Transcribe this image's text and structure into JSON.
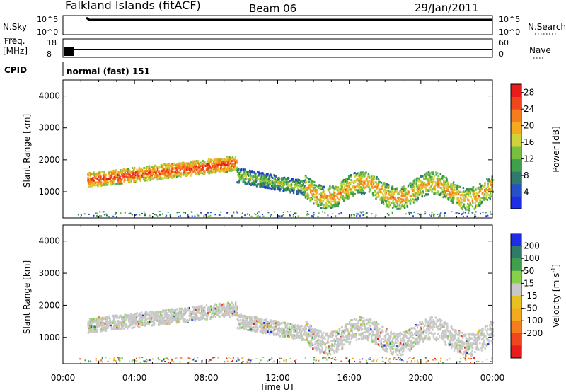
{
  "header": {
    "station": "Falkland Islands (fitACF)",
    "beam": "Beam 06",
    "date": "29/Jan/2011"
  },
  "strip_panels": {
    "nsky": {
      "label": "N.Sky",
      "right_label": "N.Search",
      "left_ticks": [
        "10^5",
        "10^0"
      ],
      "right_ticks": [
        "10^5",
        "10^0"
      ]
    },
    "freq": {
      "label_line1": "Freq.",
      "label_line2": "[MHz]",
      "right_label": "Nave",
      "left_ticks": [
        "18",
        "8"
      ],
      "right_ticks": [
        "60",
        "0"
      ]
    },
    "cpid": {
      "label": "CPID",
      "value": "normal (fast) 151"
    }
  },
  "chart_data": [
    {
      "type": "heatmap",
      "name": "power",
      "ylabel": "Slant Range [km]",
      "xlabel": "",
      "x_range_hours": [
        0,
        24
      ],
      "ylim": [
        180,
        4500
      ],
      "y_ticks": [
        1000,
        2000,
        3000,
        4000
      ],
      "colorbar": {
        "label": "Power [dB]",
        "ticks": [
          4,
          8,
          12,
          16,
          20,
          24,
          28
        ],
        "range": [
          0,
          30
        ],
        "colors": [
          "#1e2ee6",
          "#2850c8",
          "#2f7a6a",
          "#3fa04c",
          "#76c040",
          "#cfd23a",
          "#f4a91e",
          "#f57d1c",
          "#f0461e",
          "#e81c1a"
        ]
      },
      "echo_regions": [
        {
          "t": [
            1.35,
            9.7
          ],
          "range_center_start": 1350,
          "range_center_end": 1880,
          "width": 450,
          "mean_power_db": 25
        },
        {
          "t": [
            9.7,
            13.5
          ],
          "range_center_start": 1500,
          "range_center_end": 1100,
          "width": 450,
          "mean_power_db": 14
        },
        {
          "t": [
            13.5,
            24
          ],
          "range_center_start": 1050,
          "range_center_end": 1000,
          "width": 700,
          "mean_power_db": 20
        }
      ]
    },
    {
      "type": "heatmap",
      "name": "velocity",
      "ylabel": "Slant Range [km]",
      "xlabel": "Time UT",
      "x_ticks": [
        "00:00",
        "04:00",
        "08:00",
        "12:00",
        "16:00",
        "20:00",
        "00:00"
      ],
      "ylim": [
        180,
        4500
      ],
      "y_ticks": [
        1000,
        2000,
        3000,
        4000
      ],
      "colorbar": {
        "label": "Velocity [m s",
        "label_sup": "-1",
        "label_end": "]",
        "ticks": [
          200,
          100,
          50,
          15,
          -15,
          -50,
          -100,
          -200
        ],
        "colors": [
          "#1e2ee6",
          "#2f7a6a",
          "#3fa04c",
          "#86d04a",
          "#c8c8c8",
          "#e8c020",
          "#f4a91e",
          "#f57d1c",
          "#f0461e",
          "#e81c1a"
        ]
      },
      "dominant_velocity_m_s": 0
    }
  ]
}
